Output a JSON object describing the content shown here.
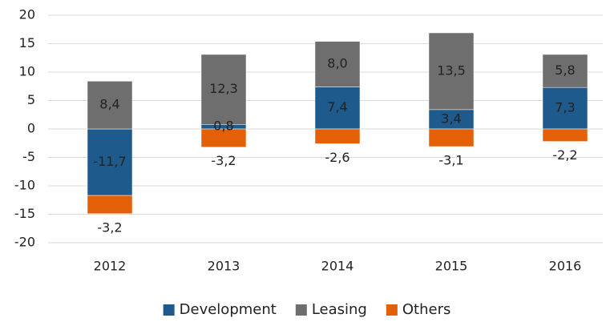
{
  "chart_data": {
    "type": "stacked_bar",
    "categories": [
      "2012",
      "2013",
      "2014",
      "2015",
      "2016"
    ],
    "series": [
      {
        "name": "Development",
        "color": "#1f5a8c",
        "values": [
          -11.7,
          0.8,
          7.4,
          3.4,
          7.3
        ],
        "value_labels": [
          "-11,7",
          "0,8",
          "7,4",
          "3,4",
          "7,3"
        ]
      },
      {
        "name": "Leasing",
        "color": "#6e6e6e",
        "values": [
          8.4,
          12.3,
          8.0,
          13.5,
          5.8
        ],
        "value_labels": [
          "8,4",
          "12,3",
          "8,0",
          "13,5",
          "5,8"
        ]
      },
      {
        "name": "Others",
        "color": "#e36009",
        "values": [
          -3.2,
          -3.2,
          -2.6,
          -3.1,
          -2.2
        ],
        "value_labels": [
          "-3,2",
          "-3,2",
          "-2,6",
          "-3,1",
          "-2,2"
        ]
      }
    ],
    "ylim": [
      -20,
      20
    ],
    "yticks": [
      -20,
      -15,
      -10,
      -5,
      0,
      5,
      10,
      15,
      20
    ],
    "grid": true,
    "legend": "bottom"
  }
}
